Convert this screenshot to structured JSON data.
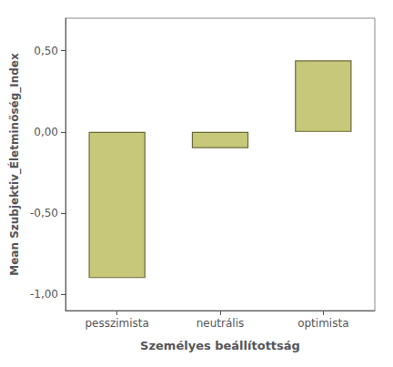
{
  "chart_data": {
    "type": "bar",
    "categories": [
      "pesszimista",
      "neutrális",
      "optimista"
    ],
    "values": [
      -0.9,
      -0.1,
      0.44
    ],
    "color": "#c8c87a",
    "xlabel": "Személyes beállítottság",
    "ylabel": "Mean Szubjektiv_Életminőség_Index",
    "ylim": [
      -1.1,
      0.7
    ],
    "yticks": [
      {
        "value": -1.0,
        "label": "-1,00"
      },
      {
        "value": -0.5,
        "label": "-0,50"
      },
      {
        "value": 0.0,
        "label": "0,00"
      },
      {
        "value": 0.5,
        "label": "0,50"
      }
    ],
    "grid": false
  }
}
